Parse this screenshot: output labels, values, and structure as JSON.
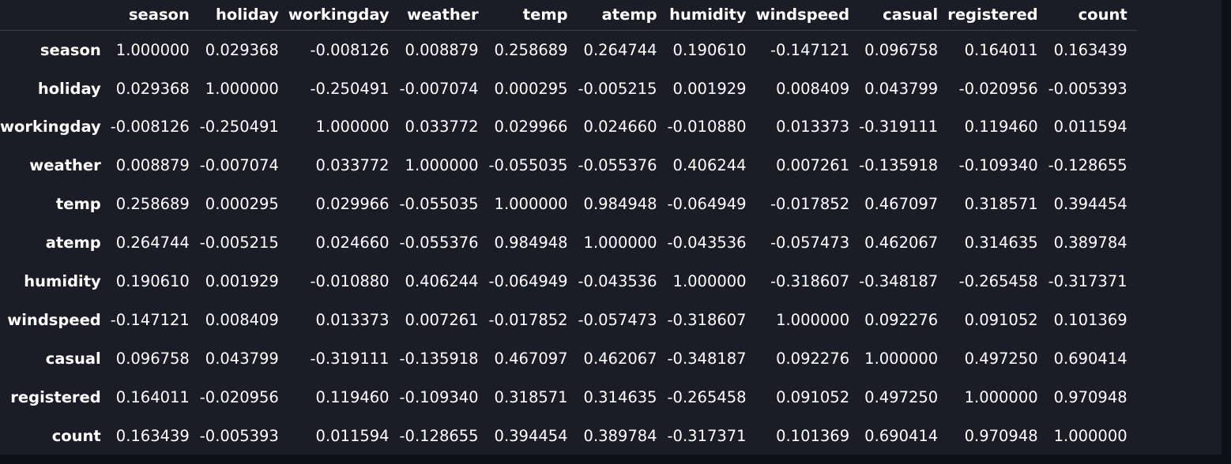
{
  "table": {
    "index_header": "",
    "columns": [
      "season",
      "holiday",
      "workingday",
      "weather",
      "temp",
      "atemp",
      "humidity",
      "windspeed",
      "casual",
      "registered",
      "count"
    ],
    "rows": [
      {
        "label": "season",
        "values": [
          "1.000000",
          "0.029368",
          "-0.008126",
          "0.008879",
          "0.258689",
          "0.264744",
          "0.190610",
          "-0.147121",
          "0.096758",
          "0.164011",
          "0.163439"
        ]
      },
      {
        "label": "holiday",
        "values": [
          "0.029368",
          "1.000000",
          "-0.250491",
          "-0.007074",
          "0.000295",
          "-0.005215",
          "0.001929",
          "0.008409",
          "0.043799",
          "-0.020956",
          "-0.005393"
        ]
      },
      {
        "label": "workingday",
        "values": [
          "-0.008126",
          "-0.250491",
          "1.000000",
          "0.033772",
          "0.029966",
          "0.024660",
          "-0.010880",
          "0.013373",
          "-0.319111",
          "0.119460",
          "0.011594"
        ]
      },
      {
        "label": "weather",
        "values": [
          "0.008879",
          "-0.007074",
          "0.033772",
          "1.000000",
          "-0.055035",
          "-0.055376",
          "0.406244",
          "0.007261",
          "-0.135918",
          "-0.109340",
          "-0.128655"
        ]
      },
      {
        "label": "temp",
        "values": [
          "0.258689",
          "0.000295",
          "0.029966",
          "-0.055035",
          "1.000000",
          "0.984948",
          "-0.064949",
          "-0.017852",
          "0.467097",
          "0.318571",
          "0.394454"
        ]
      },
      {
        "label": "atemp",
        "values": [
          "0.264744",
          "-0.005215",
          "0.024660",
          "-0.055376",
          "0.984948",
          "1.000000",
          "-0.043536",
          "-0.057473",
          "0.462067",
          "0.314635",
          "0.389784"
        ]
      },
      {
        "label": "humidity",
        "values": [
          "0.190610",
          "0.001929",
          "-0.010880",
          "0.406244",
          "-0.064949",
          "-0.043536",
          "1.000000",
          "-0.318607",
          "-0.348187",
          "-0.265458",
          "-0.317371"
        ]
      },
      {
        "label": "windspeed",
        "values": [
          "-0.147121",
          "0.008409",
          "0.013373",
          "0.007261",
          "-0.017852",
          "-0.057473",
          "-0.318607",
          "1.000000",
          "0.092276",
          "0.091052",
          "0.101369"
        ]
      },
      {
        "label": "casual",
        "values": [
          "0.096758",
          "0.043799",
          "-0.319111",
          "-0.135918",
          "0.467097",
          "0.462067",
          "-0.348187",
          "0.092276",
          "1.000000",
          "0.497250",
          "0.690414"
        ]
      },
      {
        "label": "registered",
        "values": [
          "0.164011",
          "-0.020956",
          "0.119460",
          "-0.109340",
          "0.318571",
          "0.314635",
          "-0.265458",
          "0.091052",
          "0.497250",
          "1.000000",
          "0.970948"
        ]
      },
      {
        "label": "count",
        "values": [
          "0.163439",
          "-0.005393",
          "0.011594",
          "-0.128655",
          "0.394454",
          "0.389784",
          "-0.317371",
          "0.101369",
          "0.690414",
          "0.970948",
          "1.000000"
        ]
      }
    ]
  },
  "colors": {
    "background": "#1b1c26",
    "text": "#ffffff",
    "header_rule": "#3d3f4c",
    "outer_strip": "#0f1017"
  }
}
